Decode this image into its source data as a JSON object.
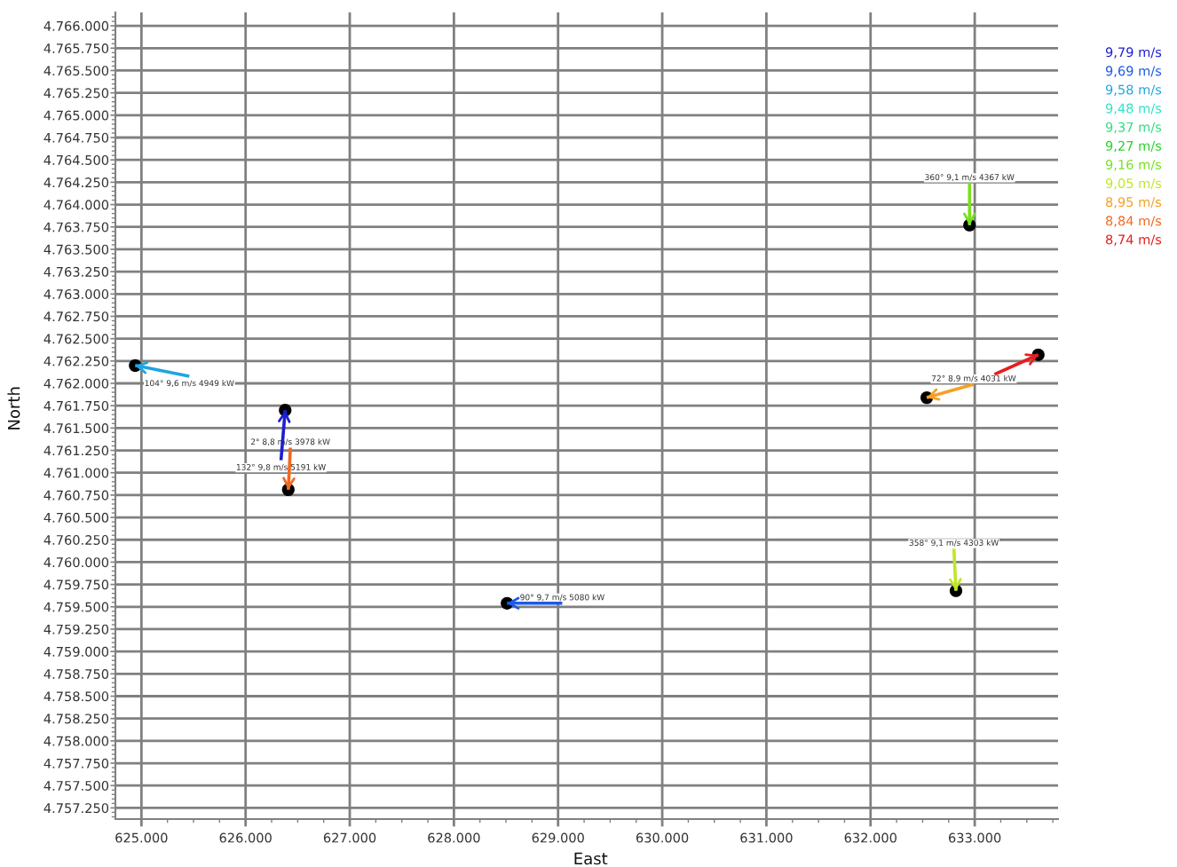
{
  "chart_data": {
    "type": "scatter",
    "xlabel": "East",
    "ylabel": "North",
    "grid": true,
    "legend": "top right",
    "xlim": [
      624750,
      633800
    ],
    "ylim": [
      4757125,
      4766150
    ],
    "xticks": [
      {
        "value": 625000,
        "label": "625.000"
      },
      {
        "value": 626000,
        "label": "626.000"
      },
      {
        "value": 627000,
        "label": "627.000"
      },
      {
        "value": 628000,
        "label": "628.000"
      },
      {
        "value": 629000,
        "label": "629.000"
      },
      {
        "value": 630000,
        "label": "630.000"
      },
      {
        "value": 631000,
        "label": "631.000"
      },
      {
        "value": 632000,
        "label": "632.000"
      },
      {
        "value": 633000,
        "label": "633.000"
      },
      {
        "value": 625250,
        "label": null
      },
      {
        "value": 625500,
        "label": null
      },
      {
        "value": 625750,
        "label": null
      },
      {
        "value": 626250,
        "label": null
      },
      {
        "value": 626500,
        "label": null
      },
      {
        "value": 626750,
        "label": null
      },
      {
        "value": 627250,
        "label": null
      },
      {
        "value": 627500,
        "label": null
      },
      {
        "value": 627750,
        "label": null
      },
      {
        "value": 628250,
        "label": null
      },
      {
        "value": 628500,
        "label": null
      },
      {
        "value": 628750,
        "label": null
      },
      {
        "value": 629250,
        "label": null
      },
      {
        "value": 629500,
        "label": null
      },
      {
        "value": 629750,
        "label": null
      },
      {
        "value": 630250,
        "label": null
      },
      {
        "value": 630500,
        "label": null
      },
      {
        "value": 630750,
        "label": null
      },
      {
        "value": 631250,
        "label": null
      },
      {
        "value": 631500,
        "label": null
      },
      {
        "value": 631750,
        "label": null
      },
      {
        "value": 632250,
        "label": null
      },
      {
        "value": 632500,
        "label": null
      },
      {
        "value": 632750,
        "label": null
      },
      {
        "value": 633250,
        "label": null
      },
      {
        "value": 633500,
        "label": null
      },
      {
        "value": 633750,
        "label": null
      }
    ],
    "yticks": [
      {
        "value": 4757250,
        "label": "4.757.250"
      },
      {
        "value": 4757500,
        "label": "4.757.500"
      },
      {
        "value": 4757750,
        "label": "4.757.750"
      },
      {
        "value": 4758000,
        "label": "4.758.000"
      },
      {
        "value": 4758250,
        "label": "4.758.250"
      },
      {
        "value": 4758500,
        "label": "4.758.500"
      },
      {
        "value": 4758750,
        "label": "4.758.750"
      },
      {
        "value": 4759000,
        "label": "4.759.000"
      },
      {
        "value": 4759250,
        "label": "4.759.250"
      },
      {
        "value": 4759500,
        "label": "4.759.500"
      },
      {
        "value": 4759750,
        "label": "4.759.750"
      },
      {
        "value": 4760000,
        "label": "4.760.000"
      },
      {
        "value": 4760250,
        "label": "4.760.250"
      },
      {
        "value": 4760500,
        "label": "4.760.500"
      },
      {
        "value": 4760750,
        "label": "4.760.750"
      },
      {
        "value": 4761000,
        "label": "4.761.000"
      },
      {
        "value": 4761250,
        "label": "4.761.250"
      },
      {
        "value": 4761500,
        "label": "4.761.500"
      },
      {
        "value": 4761750,
        "label": "4.761.750"
      },
      {
        "value": 4762000,
        "label": "4.762.000"
      },
      {
        "value": 4762250,
        "label": "4.762.250"
      },
      {
        "value": 4762500,
        "label": "4.762.500"
      },
      {
        "value": 4762750,
        "label": "4.762.750"
      },
      {
        "value": 4763000,
        "label": "4.763.000"
      },
      {
        "value": 4763250,
        "label": "4.763.250"
      },
      {
        "value": 4763500,
        "label": "4.763.500"
      },
      {
        "value": 4763750,
        "label": "4.763.750"
      },
      {
        "value": 4764000,
        "label": "4.764.000"
      },
      {
        "value": 4764250,
        "label": "4.764.250"
      },
      {
        "value": 4764500,
        "label": "4.764.500"
      },
      {
        "value": 4764750,
        "label": "4.764.750"
      },
      {
        "value": 4765000,
        "label": "4.765.000"
      },
      {
        "value": 4765250,
        "label": "4.765.250"
      },
      {
        "value": 4765500,
        "label": "4.765.500"
      },
      {
        "value": 4765750,
        "label": "4.765.750"
      },
      {
        "value": 4766000,
        "label": "4.766.000"
      },
      {
        "value": 4757150,
        "label": null
      },
      {
        "value": 4757200,
        "label": null
      },
      {
        "value": 4757300,
        "label": null
      },
      {
        "value": 4757350,
        "label": null
      },
      {
        "value": 4757400,
        "label": null
      },
      {
        "value": 4757450,
        "label": null
      },
      {
        "value": 4757550,
        "label": null
      },
      {
        "value": 4757600,
        "label": null
      },
      {
        "value": 4757650,
        "label": null
      },
      {
        "value": 4757700,
        "label": null
      },
      {
        "value": 4757800,
        "label": null
      },
      {
        "value": 4757850,
        "label": null
      },
      {
        "value": 4757900,
        "label": null
      },
      {
        "value": 4757950,
        "label": null
      },
      {
        "value": 4758050,
        "label": null
      },
      {
        "value": 4758100,
        "label": null
      },
      {
        "value": 4758150,
        "label": null
      },
      {
        "value": 4758200,
        "label": null
      },
      {
        "value": 4758300,
        "label": null
      },
      {
        "value": 4758350,
        "label": null
      },
      {
        "value": 4758400,
        "label": null
      },
      {
        "value": 4758450,
        "label": null
      },
      {
        "value": 4758550,
        "label": null
      },
      {
        "value": 4758600,
        "label": null
      },
      {
        "value": 4758650,
        "label": null
      },
      {
        "value": 4758700,
        "label": null
      },
      {
        "value": 4758800,
        "label": null
      },
      {
        "value": 4758850,
        "label": null
      },
      {
        "value": 4758900,
        "label": null
      },
      {
        "value": 4758950,
        "label": null
      },
      {
        "value": 4759050,
        "label": null
      },
      {
        "value": 4759100,
        "label": null
      },
      {
        "value": 4759150,
        "label": null
      },
      {
        "value": 4759200,
        "label": null
      },
      {
        "value": 4759300,
        "label": null
      },
      {
        "value": 4759350,
        "label": null
      },
      {
        "value": 4759400,
        "label": null
      },
      {
        "value": 4759450,
        "label": null
      },
      {
        "value": 4759550,
        "label": null
      },
      {
        "value": 4759600,
        "label": null
      },
      {
        "value": 4759650,
        "label": null
      },
      {
        "value": 4759700,
        "label": null
      },
      {
        "value": 4759800,
        "label": null
      },
      {
        "value": 4759850,
        "label": null
      },
      {
        "value": 4759900,
        "label": null
      },
      {
        "value": 4759950,
        "label": null
      },
      {
        "value": 4760050,
        "label": null
      },
      {
        "value": 4760100,
        "label": null
      },
      {
        "value": 4760150,
        "label": null
      },
      {
        "value": 4760200,
        "label": null
      },
      {
        "value": 4760300,
        "label": null
      },
      {
        "value": 4760350,
        "label": null
      },
      {
        "value": 4760400,
        "label": null
      },
      {
        "value": 4760450,
        "label": null
      },
      {
        "value": 4760550,
        "label": null
      },
      {
        "value": 4760600,
        "label": null
      },
      {
        "value": 4760650,
        "label": null
      },
      {
        "value": 4760700,
        "label": null
      },
      {
        "value": 4760800,
        "label": null
      },
      {
        "value": 4760850,
        "label": null
      },
      {
        "value": 4760900,
        "label": null
      },
      {
        "value": 4760950,
        "label": null
      },
      {
        "value": 4761050,
        "label": null
      },
      {
        "value": 4761100,
        "label": null
      },
      {
        "value": 4761150,
        "label": null
      },
      {
        "value": 4761200,
        "label": null
      },
      {
        "value": 4761300,
        "label": null
      },
      {
        "value": 4761350,
        "label": null
      },
      {
        "value": 4761400,
        "label": null
      },
      {
        "value": 4761450,
        "label": null
      },
      {
        "value": 4761550,
        "label": null
      },
      {
        "value": 4761600,
        "label": null
      },
      {
        "value": 4761650,
        "label": null
      },
      {
        "value": 4761700,
        "label": null
      },
      {
        "value": 4761800,
        "label": null
      },
      {
        "value": 4761850,
        "label": null
      },
      {
        "value": 4761900,
        "label": null
      },
      {
        "value": 4761950,
        "label": null
      },
      {
        "value": 4762050,
        "label": null
      },
      {
        "value": 4762100,
        "label": null
      },
      {
        "value": 4762150,
        "label": null
      },
      {
        "value": 4762200,
        "label": null
      },
      {
        "value": 4762300,
        "label": null
      },
      {
        "value": 4762350,
        "label": null
      },
      {
        "value": 4762400,
        "label": null
      },
      {
        "value": 4762450,
        "label": null
      },
      {
        "value": 4762550,
        "label": null
      },
      {
        "value": 4762600,
        "label": null
      },
      {
        "value": 4762650,
        "label": null
      },
      {
        "value": 4762700,
        "label": null
      },
      {
        "value": 4762800,
        "label": null
      },
      {
        "value": 4762850,
        "label": null
      },
      {
        "value": 4762900,
        "label": null
      },
      {
        "value": 4762950,
        "label": null
      },
      {
        "value": 4763050,
        "label": null
      },
      {
        "value": 4763100,
        "label": null
      },
      {
        "value": 4763150,
        "label": null
      },
      {
        "value": 4763200,
        "label": null
      },
      {
        "value": 4763300,
        "label": null
      },
      {
        "value": 4763350,
        "label": null
      },
      {
        "value": 4763400,
        "label": null
      },
      {
        "value": 4763450,
        "label": null
      },
      {
        "value": 4763550,
        "label": null
      },
      {
        "value": 4763600,
        "label": null
      },
      {
        "value": 4763650,
        "label": null
      },
      {
        "value": 4763700,
        "label": null
      },
      {
        "value": 4763800,
        "label": null
      },
      {
        "value": 4763850,
        "label": null
      },
      {
        "value": 4763900,
        "label": null
      },
      {
        "value": 4763950,
        "label": null
      },
      {
        "value": 4764050,
        "label": null
      },
      {
        "value": 4764100,
        "label": null
      },
      {
        "value": 4764150,
        "label": null
      },
      {
        "value": 4764200,
        "label": null
      },
      {
        "value": 4764300,
        "label": null
      },
      {
        "value": 4764350,
        "label": null
      },
      {
        "value": 4764400,
        "label": null
      },
      {
        "value": 4764450,
        "label": null
      },
      {
        "value": 4764550,
        "label": null
      },
      {
        "value": 4764600,
        "label": null
      },
      {
        "value": 4764650,
        "label": null
      },
      {
        "value": 4764700,
        "label": null
      },
      {
        "value": 4764800,
        "label": null
      },
      {
        "value": 4764850,
        "label": null
      },
      {
        "value": 4764900,
        "label": null
      },
      {
        "value": 4764950,
        "label": null
      },
      {
        "value": 4765050,
        "label": null
      },
      {
        "value": 4765100,
        "label": null
      },
      {
        "value": 4765150,
        "label": null
      },
      {
        "value": 4765200,
        "label": null
      },
      {
        "value": 4765300,
        "label": null
      },
      {
        "value": 4765350,
        "label": null
      },
      {
        "value": 4765400,
        "label": null
      },
      {
        "value": 4765450,
        "label": null
      },
      {
        "value": 4765550,
        "label": null
      },
      {
        "value": 4765600,
        "label": null
      },
      {
        "value": 4765650,
        "label": null
      },
      {
        "value": 4765700,
        "label": null
      },
      {
        "value": 4765800,
        "label": null
      },
      {
        "value": 4765850,
        "label": null
      },
      {
        "value": 4765900,
        "label": null
      },
      {
        "value": 4765950,
        "label": null
      },
      {
        "value": 4766050,
        "label": null
      },
      {
        "value": 4766100,
        "label": null
      }
    ],
    "series": [
      {
        "color": "#000000",
        "marker": "circle",
        "x": [
          624940,
          626380,
          626410,
          628510,
          632950,
          632820,
          632540,
          633610
        ],
        "values": [
          4762200,
          4761700,
          4760810,
          4759540,
          4763770,
          4759680,
          4761840,
          4762320
        ]
      },
      {
        "type": "line",
        "name": "9,79 m/s",
        "color": "#1e1ed2",
        "x": [
          626340,
          626380
        ],
        "values": [
          4761140,
          4761700
        ]
      },
      {
        "type": "line",
        "name": "9,69 m/s",
        "color": "#1e5ae6",
        "x": [
          629040,
          628510
        ],
        "values": [
          4759540,
          4759540
        ]
      },
      {
        "type": "line",
        "name": "9,58 m/s",
        "color": "#1ea5e1",
        "x": [
          625460,
          624940
        ],
        "values": [
          4762080,
          4762200
        ]
      },
      {
        "type": "line",
        "name": "9,48 m/s",
        "color": "#32e1c8"
      },
      {
        "type": "line",
        "name": "9,37 m/s",
        "color": "#32dc82"
      },
      {
        "type": "line",
        "name": "9,27 m/s",
        "color": "#28d228"
      },
      {
        "type": "line",
        "name": "9,16 m/s",
        "color": "#78e11e",
        "x": [
          632950,
          632950
        ],
        "values": [
          4764240,
          4763770
        ]
      },
      {
        "type": "line",
        "name": "9,05 m/s",
        "color": "#bee628",
        "x": [
          632800,
          632820
        ],
        "values": [
          4760150,
          4759680
        ]
      },
      {
        "type": "line",
        "name": "8,95 m/s",
        "color": "#f5a028",
        "x": [
          632990,
          632540
        ],
        "values": [
          4761990,
          4761840
        ]
      },
      {
        "type": "line",
        "name": "8,84 m/s",
        "color": "#f0691e",
        "x": [
          626430,
          626410
        ],
        "values": [
          4761280,
          4760810
        ]
      },
      {
        "type": "line",
        "name": "8,74 m/s",
        "color": "#e61e1e",
        "x": [
          633190,
          633610
        ],
        "values": [
          4762100,
          4762320
        ]
      }
    ],
    "annotations": [
      {
        "text": "104° 9,6 m/s 4949 kW",
        "x": 625460,
        "y": 4762080
      },
      {
        "text": "2° 8,8 m/s 3978 kW",
        "x": 626430,
        "y": 4761280
      },
      {
        "text": "132° 9,8 m/s 5191 kW",
        "x": 626340,
        "y": 4761140
      },
      {
        "text": "90° 9,7 m/s 5080 kW",
        "x": 629040,
        "y": 4759540
      },
      {
        "text": "360° 9,1 m/s 4367 kW",
        "x": 632950,
        "y": 4764240
      },
      {
        "text": "358° 9,1 m/s 4303 kW",
        "x": 632800,
        "y": 4760150
      },
      {
        "text": "72° 8,9 m/s 4031 kW",
        "x": 632990,
        "y": 4761990
      }
    ]
  }
}
